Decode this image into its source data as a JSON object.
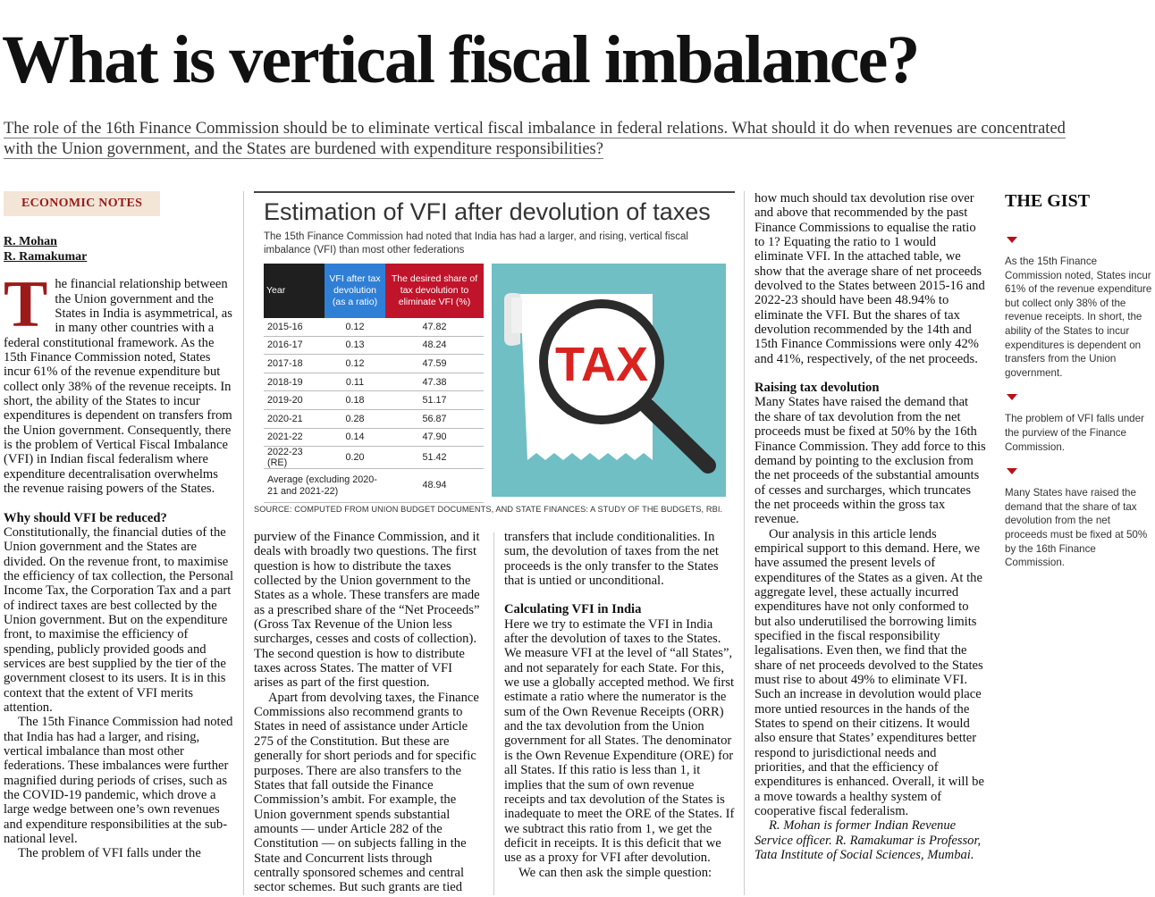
{
  "headline": "What is vertical fiscal imbalance?",
  "standfirst": "The role of the 16th Finance Commission should be to eliminate vertical fiscal imbalance in federal relations. What should it do when revenues are concentrated with the Union government, and the States are burdened with expenditure responsibilities?",
  "tag": "ECONOMIC NOTES",
  "authors": [
    "R. Mohan",
    "R. Ramakumar"
  ],
  "col1": {
    "dropcap": "T",
    "intro": "he financial relationship between the Union government and the States in India is asymmetrical, as in many other countries with a federal constitutional framework. As the 15th Finance Commission noted, States incur 61% of the revenue expenditure but collect only 38% of the revenue receipts. In short, the ability of the States to incur expenditures is dependent on transfers from the Union government. Consequently, there is the problem of Vertical Fiscal Imbalance (VFI) in Indian fiscal federalism where expenditure decentralisation overwhelms the revenue raising powers of the States.",
    "subhead": "Why should VFI be reduced?",
    "para2": "Constitutionally, the financial duties of the Union government and the States are divided. On the revenue front, to maximise the efficiency of tax collection, the Personal Income Tax, the Corporation Tax and a part of indirect taxes are best collected by the Union government. But on the expenditure front, to maximise the efficiency of spending, publicly provided goods and services are best supplied by the tier of the government closest to its users. It is in this context that the extent of VFI merits attention.",
    "para3": "The 15th Finance Commission had noted that India has had a larger, and rising, vertical imbalance than most other federations. These imbalances were further magnified during periods of crises, such as the COVID-19 pandemic, which drove a large wedge between one’s own revenues and expenditure responsibilities at the sub-national level.",
    "para4": "The problem of VFI falls under the"
  },
  "graphic": {
    "title": "Estimation of VFI after devolution of taxes",
    "subtitle": "The 15th Finance Commission had noted that India has had a larger, and rising, vertical fiscal imbalance (VFI) than most other federations",
    "headers": [
      "Year",
      "VFI after tax devolution (as a ratio)",
      "The desired share of tax devolution to eliminate VFI (%)"
    ],
    "rows": [
      [
        "2015-16",
        "0.12",
        "47.82"
      ],
      [
        "2016-17",
        "0.13",
        "48.24"
      ],
      [
        "2017-18",
        "0.12",
        "47.59"
      ],
      [
        "2018-19",
        "0.11",
        "47.38"
      ],
      [
        "2019-20",
        "0.18",
        "51.17"
      ],
      [
        "2020-21",
        "0.28",
        "56.87"
      ],
      [
        "2021-22",
        "0.14",
        "47.90"
      ],
      [
        "2022-23 (RE)",
        "0.20",
        "51.42"
      ]
    ],
    "average_label": "Average (excluding 2020-21 and 2021-22)",
    "average_value": "48.94",
    "illustration_text": "TAX",
    "source": "SOURCE: COMPUTED FROM UNION BUDGET DOCUMENTS, AND STATE FINANCES: A STUDY OF THE BUDGETS, RBI.",
    "colors": {
      "header_dark": "#1f1f1f",
      "header_blue": "#2f7fd6",
      "header_red": "#c0142b",
      "illustration_bg": "#6fbfc4",
      "tax_red": "#d9231f"
    }
  },
  "col2": {
    "para1": "purview of the Finance Commission, and it deals with broadly two questions. The first question is how to distribute the taxes collected by the Union government to the States as a whole. These transfers are made as a prescribed share of the “Net Proceeds” (Gross Tax Revenue of the Union less surcharges, cesses and costs of collection). The second question is how to distribute taxes across States. The matter of VFI arises as part of the first question.",
    "para2": "Apart from devolving taxes, the Finance Commissions also recommend grants to States in need of assistance under Article 275 of the Constitution. But these are generally for short periods and for specific purposes. There are also transfers to the States that fall outside the Finance Commission’s ambit. For example, the Union government spends substantial amounts — under Article 282 of the Constitution — on subjects falling in the State and Concurrent lists through centrally sponsored schemes and central sector schemes. But such grants are tied"
  },
  "col3": {
    "para1": "transfers that include conditionalities. In sum, the devolution of taxes from the net proceeds is the only transfer to the States that is untied or unconditional.",
    "subhead": "Calculating VFI in India",
    "para2": "Here we try to estimate the VFI in India after the devolution of taxes to the States. We measure VFI at the level of “all States”, and not separately for each State. For this, we use a globally accepted method. We first estimate a ratio where the numerator is the sum of the Own Revenue Receipts (ORR) and the tax devolution from the Union government for all States. The denominator is the Own Revenue Expenditure (ORE) for all States. If this ratio is less than 1, it implies that the sum of own revenue receipts and tax devolution of the States is inadequate to meet the ORE of the States. If we subtract this ratio from 1, we get the deficit in receipts. It is this deficit that we use as a proxy for VFI after devolution.",
    "para3": "We can then ask the simple question:"
  },
  "col4": {
    "para1": "how much should tax devolution rise over and above that recommended by the past Finance Commissions to equalise the ratio to 1? Equating the ratio to 1 would eliminate VFI. In the attached table, we show that the average share of net proceeds devolved to the States between 2015-16 and 2022-23 should have been 48.94% to eliminate the VFI. But the shares of tax devolution recommended by the 14th and 15th Finance Commissions were only 42% and 41%, respectively, of the net proceeds.",
    "subhead": "Raising tax devolution",
    "para2": "Many States have raised the demand that the share of tax devolution from the net proceeds must be fixed at 50% by the 16th Finance Commission. They add force to this demand by pointing to the exclusion from the net proceeds of the substantial amounts of cesses and surcharges, which truncates the net proceeds within the gross tax revenue.",
    "para3": "Our analysis in this article lends empirical support to this demand. Here, we have assumed the present levels of expenditures of the States as a given. At the aggregate level, these actually incurred expenditures have not only conformed to but also underutilised the borrowing limits specified in the fiscal responsibility legalisations. Even then, we find that the share of net proceeds devolved to the States must rise to about 49% to eliminate VFI. Such an increase in devolution would place more untied resources in the hands of the States to spend on their citizens. It would also ensure that States’ expenditures better respond to jurisdictional needs and priorities, and that the efficiency of expenditures is enhanced. Overall, it will be a move towards a healthy system of cooperative fiscal federalism.",
    "bio": "R. Mohan is former Indian Revenue Service officer. R. Ramakumar is Professor, Tata Institute of Social Sciences, Mumbai."
  },
  "gist": {
    "title": "THE GIST",
    "items": [
      "As the 15th Finance Commission noted, States incur 61% of the revenue expenditure but collect only 38% of the revenue receipts. In short, the ability of the States to incur expenditures is dependent on transfers from the Union government.",
      "The problem of VFI falls under the purview of the Finance Commission.",
      "Many States have raised the demand that the share of tax devolution from the net proceeds must be fixed at 50% by the 16th Finance Commission."
    ]
  }
}
